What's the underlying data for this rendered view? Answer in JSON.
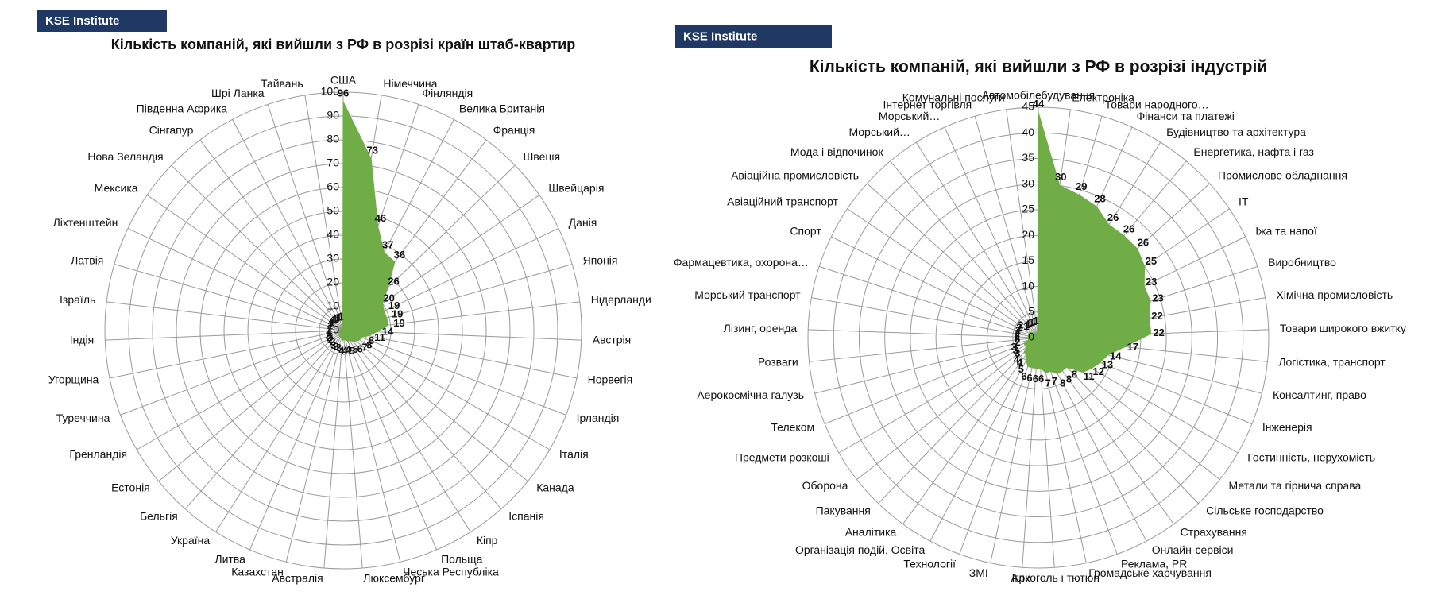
{
  "chart_data": [
    {
      "type": "radar",
      "badge": "KSE Institute",
      "title": "Кількість компаній, які вийшли з РФ в розрізі країн штаб-квартир",
      "categories": [
        "США",
        "Німеччина",
        "Фінляндія",
        "Велика Британія",
        "Франція",
        "Швеція",
        "Швейцарія",
        "Данія",
        "Японія",
        "Нідерланди",
        "Австрія",
        "Норвегія",
        "Ірландія",
        "Італія",
        "Канада",
        "Іспанія",
        "Кіпр",
        "Польща",
        "Чеська Республіка",
        "Люксембург",
        "Австралія",
        "Казахстан",
        "Литва",
        "Україна",
        "Бельгія",
        "Естонія",
        "Гренландія",
        "Туреччина",
        "Угорщина",
        "Індія",
        "Ізраїль",
        "Латвія",
        "Ліхтенштейн",
        "Мексика",
        "Нова Зеландія",
        "Сінгапур",
        "Південна Африка",
        "Шрі Ланка",
        "Тайвань"
      ],
      "values": [
        96,
        73,
        46,
        37,
        36,
        26,
        20,
        19,
        19,
        19,
        14,
        11,
        8,
        8,
        7,
        6,
        5,
        5,
        4,
        4,
        4,
        3,
        3,
        3,
        2,
        2,
        2,
        2,
        1,
        1,
        1,
        1,
        1,
        1,
        1,
        1,
        1,
        1,
        1
      ],
      "color": "#70ad47",
      "ylim": [
        0,
        100
      ],
      "yticks": [
        0,
        10,
        20,
        30,
        40,
        50,
        60,
        70,
        80,
        90,
        100
      ],
      "grid": true
    },
    {
      "type": "radar",
      "badge": "KSE Institute",
      "title": "Кількість компаній, які вийшли з РФ в розрізі індустрій",
      "categories": [
        "Автомобілебудування",
        "Електроніка",
        "Товари народного…",
        "Фінанси та платежі",
        "Будівництво та архітектура",
        "Енергетика, нафта  і газ",
        "Промислове обладнання",
        "IT",
        "Їжа та напої",
        "Виробництво",
        "Хімічна промисловість",
        "Товари широкого вжитку",
        "Логістика, транспорт",
        "Консалтинг, право",
        "Інженерія",
        "Гостинність, нерухомість",
        "Метали та гірнича справа",
        "Сільське господарство",
        "Страхування",
        "Онлайн-сервіси",
        "Реклама, PR",
        "Громадське харчування",
        "Алкоголь і тютюн",
        "Ігри",
        "ЗМІ",
        "Технології",
        "Організація подій, Освіта",
        "Аналітика",
        "Пакування",
        "Оборона",
        "Предмети розкоші",
        "Телеком",
        "Аерокосмічна галузь",
        "Розваги",
        "Лізинг, оренда",
        "Морський транспорт",
        "Фармацевтика, охорона…",
        "Спорт",
        "Авіаційний транспорт",
        "Авіаційна промисловість",
        "Мода і відпочинок",
        "Морський…",
        "Морський…",
        "Інтернет  торгівля",
        "Комунальні послуги"
      ],
      "values": [
        44,
        30,
        29,
        28,
        26,
        26,
        26,
        25,
        23,
        23,
        22,
        22,
        17,
        14,
        13,
        12,
        11,
        8,
        8,
        8,
        7,
        7,
        6,
        6,
        6,
        6,
        5,
        4,
        4,
        3,
        3,
        3,
        2,
        2,
        2,
        2,
        2,
        2,
        2,
        1,
        1,
        1,
        1,
        1,
        1
      ],
      "color": "#70ad47",
      "ylim": [
        0,
        45
      ],
      "yticks": [
        0,
        5,
        10,
        15,
        20,
        25,
        30,
        35,
        40,
        45
      ],
      "grid": true
    }
  ]
}
